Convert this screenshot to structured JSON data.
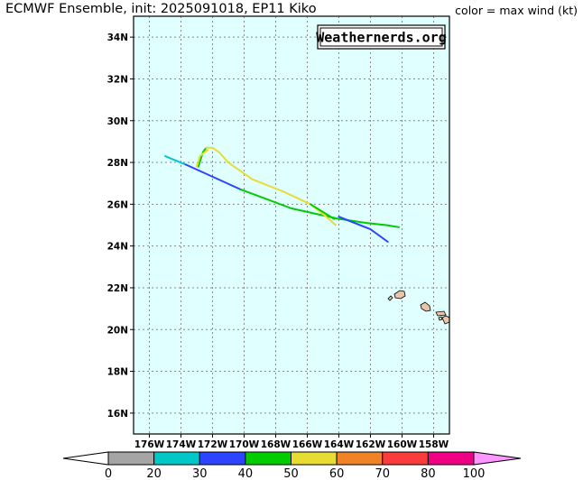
{
  "header": {
    "title": "ECMWF Ensemble, init: 2025091018, EP11 Kiko",
    "note": "color = max wind (kt)"
  },
  "watermark": "Weathernerds.org",
  "chart_data": {
    "type": "map-tracks",
    "x_range": [
      -177,
      -157
    ],
    "y_range": [
      15,
      35
    ],
    "x_ticks": [
      {
        "value": -176,
        "label": "176W"
      },
      {
        "value": -174,
        "label": "174W"
      },
      {
        "value": -172,
        "label": "172W"
      },
      {
        "value": -170,
        "label": "170W"
      },
      {
        "value": -168,
        "label": "168W"
      },
      {
        "value": -166,
        "label": "166W"
      },
      {
        "value": -164,
        "label": "164W"
      },
      {
        "value": -162,
        "label": "162W"
      },
      {
        "value": -160,
        "label": "160W"
      },
      {
        "value": -158,
        "label": "158W"
      }
    ],
    "y_ticks": [
      {
        "value": 16,
        "label": "16N"
      },
      {
        "value": 18,
        "label": "18N"
      },
      {
        "value": 20,
        "label": "20N"
      },
      {
        "value": 22,
        "label": "22N"
      },
      {
        "value": 24,
        "label": "24N"
      },
      {
        "value": 26,
        "label": "26N"
      },
      {
        "value": 28,
        "label": "28N"
      },
      {
        "value": 30,
        "label": "30N"
      },
      {
        "value": 32,
        "label": "32N"
      },
      {
        "value": 34,
        "label": "34N"
      }
    ],
    "grid": true,
    "colors": {
      "ocean": "#e0ffff",
      "grid": "#888888",
      "land": "#e8c4a8"
    },
    "tracks": [
      {
        "segments": [
          {
            "points": [
              [
                -175.0,
                28.3
              ],
              [
                -173.7,
                27.9
              ]
            ],
            "color": "#00c8c8"
          },
          {
            "points": [
              [
                -173.7,
                27.9
              ],
              [
                -170.2,
                26.7
              ]
            ],
            "color": "#2c44ff"
          },
          {
            "points": [
              [
                -170.2,
                26.7
              ],
              [
                -167.0,
                25.8
              ],
              [
                -164.0,
                25.3
              ]
            ],
            "color": "#00cc00"
          },
          {
            "points": [
              [
                -164.0,
                25.3
              ],
              [
                -162.2,
                25.1
              ],
              [
                -161.0,
                25.0
              ],
              [
                -160.2,
                24.9
              ]
            ],
            "color": "#00cc00"
          }
        ]
      },
      {
        "segments": [
          {
            "points": [
              [
                -164.0,
                25.4
              ],
              [
                -162.0,
                24.8
              ],
              [
                -160.9,
                24.2
              ]
            ],
            "color": "#2c44ff"
          }
        ]
      },
      {
        "segments": [
          {
            "points": [
              [
                -172.9,
                27.8
              ],
              [
                -172.6,
                28.5
              ],
              [
                -172.4,
                28.7
              ]
            ],
            "color": "#00cc00"
          },
          {
            "points": [
              [
                -172.4,
                28.7
              ],
              [
                -172.0,
                28.7
              ],
              [
                -171.6,
                28.5
              ],
              [
                -171.0,
                28.0
              ],
              [
                -169.5,
                27.2
              ],
              [
                -167.5,
                26.6
              ],
              [
                -165.8,
                26.0
              ],
              [
                -164.8,
                25.4
              ],
              [
                -164.2,
                25.0
              ]
            ],
            "color": "#e6dc32"
          },
          {
            "points": [
              [
                -165.8,
                26.0
              ],
              [
                -164.3,
                25.3
              ]
            ],
            "color": "#00cc00"
          }
        ]
      },
      {
        "segments": [
          {
            "points": [
              [
                -173.0,
                27.8
              ],
              [
                -172.8,
                28.3
              ],
              [
                -172.3,
                28.6
              ]
            ],
            "color": "#e6dc32"
          }
        ]
      }
    ],
    "colorbar": {
      "bins": [
        {
          "from": 0,
          "to": 20,
          "color": "#a5a5a5"
        },
        {
          "from": 20,
          "to": 30,
          "color": "#00c8c8"
        },
        {
          "from": 30,
          "to": 40,
          "color": "#2c44ff"
        },
        {
          "from": 40,
          "to": 50,
          "color": "#00cc00"
        },
        {
          "from": 50,
          "to": 60,
          "color": "#e6dc32"
        },
        {
          "from": 60,
          "to": 70,
          "color": "#f08228"
        },
        {
          "from": 70,
          "to": 80,
          "color": "#fa3c3c"
        },
        {
          "from": 80,
          "to": 100,
          "color": "#f00082"
        }
      ],
      "under_color": "#ffffff",
      "over_color": "#ff96ff",
      "labels": [
        "0",
        "20",
        "30",
        "40",
        "50",
        "60",
        "70",
        "80",
        "100"
      ]
    }
  }
}
